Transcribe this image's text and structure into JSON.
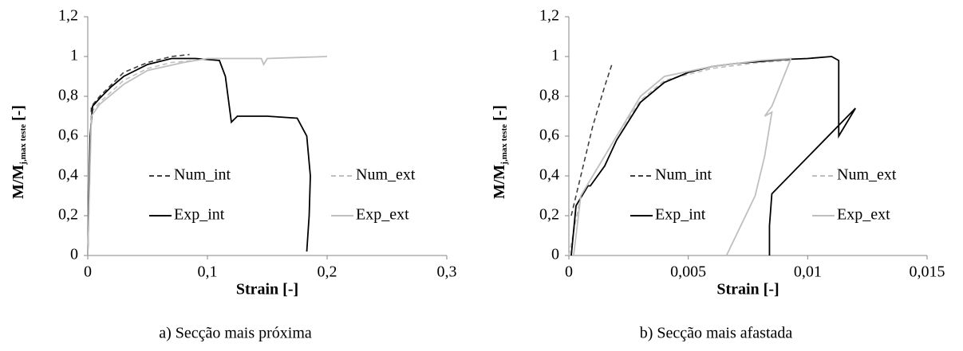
{
  "chart_data": [
    {
      "type": "line",
      "x_label": "Strain [-]",
      "y_label": {
        "main": "M/M",
        "sub": "j,max teste",
        "unit": "[-]"
      },
      "caption": "a) Secção mais próxima",
      "xlim": [
        0,
        0.3
      ],
      "xticks": [
        0,
        {
          "value": 0.1,
          "label": "0,1"
        },
        {
          "value": 0.2,
          "label": "0,2"
        },
        {
          "value": 0.3,
          "label": "0,3"
        }
      ],
      "ylim": [
        0,
        1.2
      ],
      "yticks": [
        0,
        {
          "value": 0.2,
          "label": "0,2"
        },
        {
          "value": 0.4,
          "label": "0,4"
        },
        {
          "value": 0.6,
          "label": "0,6"
        },
        {
          "value": 0.8,
          "label": "0,8"
        },
        1,
        {
          "value": 1.2,
          "label": "1,2"
        }
      ],
      "grid": false,
      "series": [
        {
          "name": "Num_int",
          "color": "#404040",
          "dash": true,
          "x": [
            0,
            0.003,
            0.01,
            0.02,
            0.03,
            0.05,
            0.07,
            0.085
          ],
          "values": [
            0,
            0.75,
            0.8,
            0.86,
            0.92,
            0.97,
            1.0,
            1.01
          ]
        },
        {
          "name": "Num_ext",
          "color": "#bfbfbf",
          "dash": true,
          "x": [
            0,
            0.003,
            0.01,
            0.03,
            0.05,
            0.07,
            0.09
          ],
          "values": [
            0,
            0.72,
            0.77,
            0.88,
            0.94,
            0.97,
            0.98
          ]
        },
        {
          "name": "Exp_int",
          "color": "#000000",
          "dash": false,
          "x": [
            0,
            0.002,
            0.004,
            0.01,
            0.02,
            0.03,
            0.05,
            0.07,
            0.09,
            0.1,
            0.11,
            0.115,
            0.12,
            0.125,
            0.15,
            0.175,
            0.183,
            0.186,
            0.185,
            0.183
          ],
          "values": [
            0,
            0.6,
            0.75,
            0.79,
            0.85,
            0.9,
            0.96,
            0.99,
            0.99,
            0.985,
            0.98,
            0.9,
            0.67,
            0.7,
            0.7,
            0.69,
            0.6,
            0.4,
            0.2,
            0.02
          ]
        },
        {
          "name": "Exp_ext",
          "color": "#bfbfbf",
          "dash": false,
          "x": [
            0,
            0.003,
            0.01,
            0.03,
            0.05,
            0.08,
            0.1,
            0.12,
            0.145,
            0.147,
            0.15,
            0.2
          ],
          "values": [
            0,
            0.7,
            0.76,
            0.86,
            0.93,
            0.97,
            0.99,
            0.99,
            0.99,
            0.96,
            0.99,
            1.0
          ]
        }
      ]
    },
    {
      "type": "line",
      "x_label": "Strain [-]",
      "y_label": {
        "main": "M/M",
        "sub": "j,max teste",
        "unit": "[-]"
      },
      "caption": "b) Secção mais afastada",
      "xlim": [
        0,
        0.015
      ],
      "xticks": [
        0,
        {
          "value": 0.005,
          "label": "0,005"
        },
        {
          "value": 0.01,
          "label": "0,01"
        },
        {
          "value": 0.015,
          "label": "0,015"
        }
      ],
      "ylim": [
        0,
        1.2
      ],
      "yticks": [
        0,
        {
          "value": 0.2,
          "label": "0,2"
        },
        {
          "value": 0.4,
          "label": "0,4"
        },
        {
          "value": 0.6,
          "label": "0,6"
        },
        {
          "value": 0.8,
          "label": "0,8"
        },
        1,
        {
          "value": 1.2,
          "label": "1,2"
        }
      ],
      "grid": false,
      "series": [
        {
          "name": "Num_int",
          "color": "#404040",
          "dash": true,
          "x": [
            0.0001,
            0.0003,
            0.0006,
            0.001,
            0.0015,
            0.0018
          ],
          "values": [
            0.2,
            0.3,
            0.45,
            0.65,
            0.85,
            0.96
          ]
        },
        {
          "name": "Num_ext",
          "color": "#bfbfbf",
          "dash": true,
          "x": [
            0,
            0.0005,
            0.001,
            0.002,
            0.003,
            0.004,
            0.006,
            0.008,
            0.0093
          ],
          "values": [
            0,
            0.3,
            0.4,
            0.6,
            0.78,
            0.88,
            0.94,
            0.97,
            0.98
          ]
        },
        {
          "name": "Exp_int",
          "color": "#000000",
          "dash": false,
          "x": [
            0.0001,
            0.0003,
            0.0008,
            0.0009,
            0.0015,
            0.002,
            0.003,
            0.004,
            0.005,
            0.006,
            0.007,
            0.008,
            0.009,
            0.01,
            0.011,
            0.0113,
            0.0113,
            0.0113,
            0.012,
            0.0085,
            0.0084,
            0.0084
          ],
          "values": [
            0,
            0.25,
            0.35,
            0.35,
            0.45,
            0.58,
            0.77,
            0.87,
            0.92,
            0.95,
            0.965,
            0.975,
            0.985,
            0.99,
            1.0,
            0.98,
            0.85,
            0.6,
            0.74,
            0.31,
            0.15,
            0
          ]
        },
        {
          "name": "Exp_ext",
          "color": "#bfbfbf",
          "dash": false,
          "x": [
            0.0002,
            0.0005,
            0.001,
            0.002,
            0.003,
            0.004,
            0.006,
            0.008,
            0.0093,
            0.0085,
            0.0082,
            0.0085,
            0.0082,
            0.0078,
            0.0066
          ],
          "values": [
            0,
            0.3,
            0.4,
            0.6,
            0.8,
            0.9,
            0.95,
            0.98,
            0.99,
            0.75,
            0.7,
            0.72,
            0.5,
            0.3,
            0
          ]
        }
      ]
    }
  ]
}
